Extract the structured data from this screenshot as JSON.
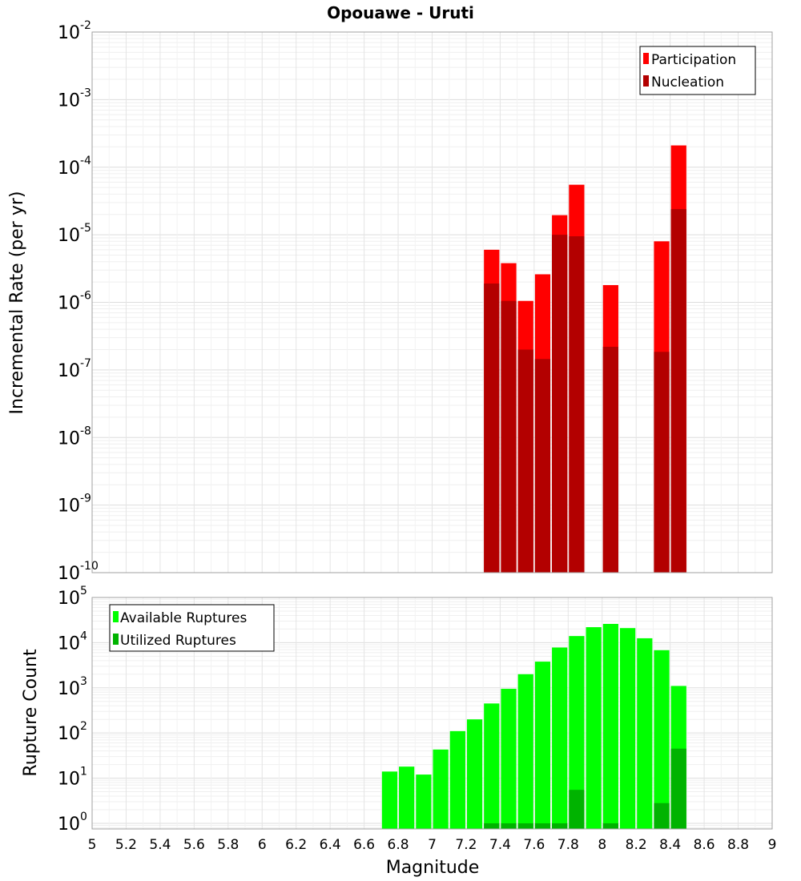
{
  "chart_data": [
    {
      "type": "bar",
      "title": "Opouawe - Uruti",
      "xlabel": "",
      "ylabel": "Incremental Rate (per yr)",
      "yscale": "log",
      "xlim": [
        5,
        9
      ],
      "ylim": [
        1e-10,
        0.01
      ],
      "y_tick_exponents": [
        -2,
        -3,
        -4,
        -5,
        -6,
        -7,
        -8,
        -9,
        -10
      ],
      "grid": true,
      "legend_position": "top-right",
      "bin_width": 0.1,
      "series": [
        {
          "name": "Participation",
          "color": "#ff0000",
          "x": [
            7.35,
            7.45,
            7.55,
            7.65,
            7.75,
            7.85,
            8.05,
            8.35,
            8.45
          ],
          "values": [
            6e-06,
            3.8e-06,
            1.05e-06,
            2.6e-06,
            1.95e-05,
            5.5e-05,
            1.8e-06,
            8e-06,
            0.00021
          ]
        },
        {
          "name": "Nucleation",
          "color": "#b30000",
          "x": [
            7.35,
            7.45,
            7.55,
            7.65,
            7.75,
            7.85,
            8.05,
            8.35,
            8.45
          ],
          "values": [
            1.9e-06,
            1.05e-06,
            2e-07,
            1.45e-07,
            1e-05,
            9.5e-06,
            2.2e-07,
            1.85e-07,
            2.4e-05
          ]
        }
      ]
    },
    {
      "type": "bar",
      "title": "",
      "xlabel": "Magnitude",
      "ylabel": "Rupture Count",
      "yscale": "log",
      "xlim": [
        5,
        9
      ],
      "ylim": [
        0.75,
        100000.0
      ],
      "y_tick_exponents": [
        0,
        1,
        2,
        3,
        4,
        5
      ],
      "x_ticks": [
        "5",
        "5.2",
        "5.4",
        "5.6",
        "5.8",
        "6",
        "6.2",
        "6.4",
        "6.6",
        "6.8",
        "7",
        "7.2",
        "7.4",
        "7.6",
        "7.8",
        "8",
        "8.2",
        "8.4",
        "8.6",
        "8.8",
        "9"
      ],
      "grid": true,
      "legend_position": "top-left",
      "bin_width": 0.1,
      "series": [
        {
          "name": "Available Ruptures",
          "color": "#00ff00",
          "x": [
            6.75,
            6.85,
            6.95,
            7.05,
            7.15,
            7.25,
            7.35,
            7.45,
            7.55,
            7.65,
            7.75,
            7.85,
            7.95,
            8.05,
            8.15,
            8.25,
            8.35,
            8.45
          ],
          "values": [
            14,
            18,
            12,
            43,
            110,
            200,
            450,
            950,
            2000,
            3800,
            7800,
            14000,
            22000,
            26000,
            21000,
            12500,
            6800,
            1100
          ]
        },
        {
          "name": "Utilized Ruptures",
          "color": "#00b300",
          "x": [
            7.35,
            7.45,
            7.55,
            7.65,
            7.75,
            7.85,
            8.05,
            8.35,
            8.45
          ],
          "values": [
            1,
            1,
            1,
            1,
            1,
            5.5,
            1,
            2.8,
            45
          ]
        }
      ]
    }
  ]
}
